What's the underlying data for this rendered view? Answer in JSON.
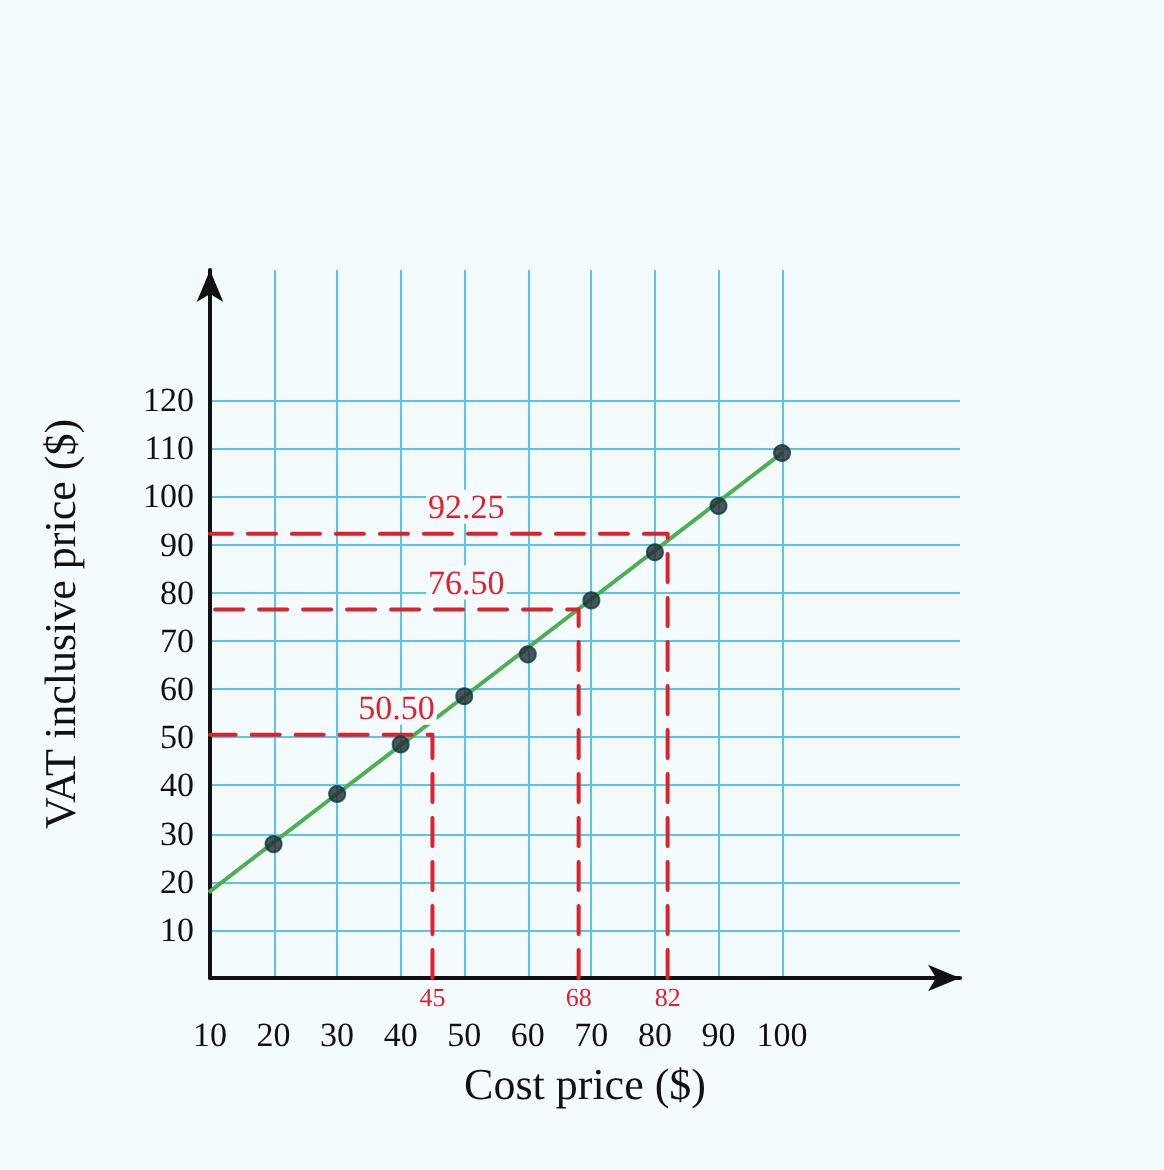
{
  "chart_data": {
    "type": "scatter",
    "xlabel": "Cost price ($)",
    "ylabel": "VAT inclusive price ($)",
    "xlim": [
      10,
      128
    ],
    "xticks": [
      10,
      20,
      30,
      40,
      50,
      60,
      70,
      80,
      90,
      100
    ],
    "ylim": [
      0,
      147
    ],
    "yticks": [
      10,
      20,
      30,
      40,
      50,
      60,
      70,
      80,
      90,
      100,
      110,
      120
    ],
    "grid": true,
    "series": [
      {
        "type": "line",
        "color": "#4caf50",
        "x": [
          10,
          100
        ],
        "values": [
          18,
          109
        ],
        "marker": "none",
        "line_style": "solid"
      },
      {
        "type": "line",
        "color": "#e0202a",
        "x": [
          45,
          45,
          10
        ],
        "values": [
          0,
          50.5,
          50.5
        ],
        "marker": "none",
        "line_style": "dashed"
      },
      {
        "type": "line",
        "color": "#e0202a",
        "x": [
          68,
          68,
          10
        ],
        "values": [
          0,
          76.5,
          76.5
        ],
        "marker": "none",
        "line_style": "dashed"
      },
      {
        "type": "line",
        "color": "#e0202a",
        "x": [
          82,
          82,
          10
        ],
        "values": [
          0,
          92.25,
          92.25
        ],
        "marker": "none",
        "line_style": "dashed"
      },
      {
        "color": "#1f2a30",
        "x": [
          20,
          30,
          40,
          50,
          60,
          70,
          80,
          90,
          100
        ],
        "values": [
          27.8,
          38.2,
          48.5,
          58.5,
          67.2,
          78.4,
          88.4,
          98,
          109
        ],
        "marker": "circle"
      }
    ],
    "annotations": [
      {
        "text": "50.50",
        "x": 33,
        "y": 50.5
      },
      {
        "text": "76.50",
        "x": 44,
        "y": 76.5
      },
      {
        "text": "92.25",
        "x": 44,
        "y": 92.25
      },
      {
        "text": "45",
        "x": 45,
        "y": 0
      },
      {
        "text": "68",
        "x": 68,
        "y": 0
      },
      {
        "text": "82",
        "x": 82,
        "y": 0
      }
    ]
  }
}
